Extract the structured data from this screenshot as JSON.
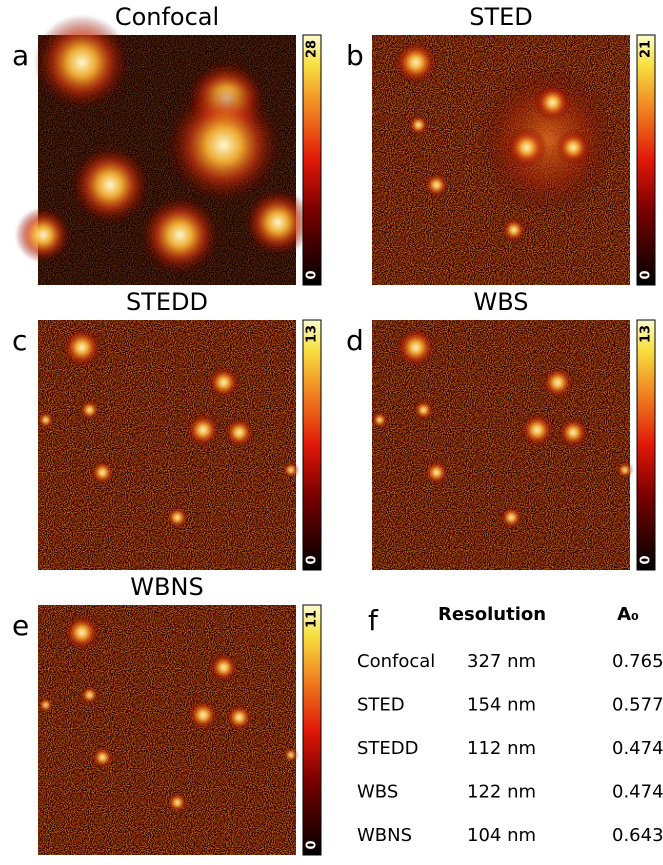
{
  "panels": [
    {
      "letter": "a",
      "title": "Confocal",
      "colorbar_max": 28,
      "colorbar_min": 0
    },
    {
      "letter": "b",
      "title": "STED",
      "colorbar_max": 21,
      "colorbar_min": 0
    },
    {
      "letter": "c",
      "title": "STEDD",
      "colorbar_max": 13,
      "colorbar_min": 0
    },
    {
      "letter": "d",
      "title": "WBS",
      "colorbar_max": 13,
      "colorbar_min": 0
    },
    {
      "letter": "e",
      "title": "WBNS",
      "colorbar_max": 11,
      "colorbar_min": 0
    }
  ],
  "table": {
    "letter": "f",
    "headers": [
      "Resolution",
      "A₀"
    ],
    "rows": [
      [
        "Confocal",
        "327 nm",
        "0.765"
      ],
      [
        "STED",
        "154 nm",
        "0.577"
      ],
      [
        "STEDD",
        "112 nm",
        "0.474"
      ],
      [
        "WBS",
        "122 nm",
        "0.474"
      ],
      [
        "WBNS",
        "104 nm",
        "0.643"
      ]
    ]
  }
}
